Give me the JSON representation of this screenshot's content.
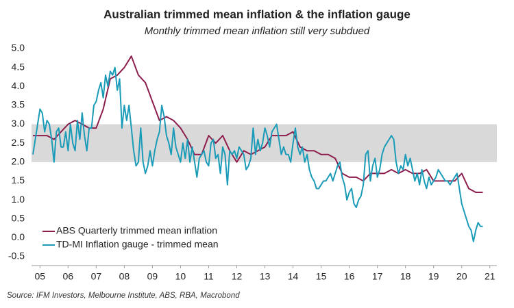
{
  "chart_data": {
    "type": "line",
    "title": "Australian trimmed mean inflation & the inflation gauge",
    "subtitle": "Monthly trimmed mean inflation still very subdued",
    "source": "Source: IFM Investors, Melbourne Institute, ABS, RBA, Macrobond",
    "xlim": [
      2004.7,
      2021.25
    ],
    "xticks": [
      {
        "value": 2005,
        "label": "05"
      },
      {
        "value": 2006,
        "label": "06"
      },
      {
        "value": 2007,
        "label": "07"
      },
      {
        "value": 2008,
        "label": "08"
      },
      {
        "value": 2009,
        "label": "09"
      },
      {
        "value": 2010,
        "label": "10"
      },
      {
        "value": 2011,
        "label": "11"
      },
      {
        "value": 2012,
        "label": "12"
      },
      {
        "value": 2013,
        "label": "13"
      },
      {
        "value": 2014,
        "label": "14"
      },
      {
        "value": 2015,
        "label": "15"
      },
      {
        "value": 2016,
        "label": "16"
      },
      {
        "value": 2017,
        "label": "17"
      },
      {
        "value": 2018,
        "label": "18"
      },
      {
        "value": 2019,
        "label": "19"
      },
      {
        "value": 2020,
        "label": "20"
      },
      {
        "value": 2021,
        "label": "21"
      }
    ],
    "ylim": [
      -0.7,
      5.1
    ],
    "yticks": [
      -0.5,
      {
        "value": 0,
        "label": "0.0"
      },
      0.5,
      {
        "value": 1,
        "label": "1.0"
      },
      1.5,
      {
        "value": 2,
        "label": "2.0"
      },
      2.5,
      {
        "value": 3,
        "label": "3.0"
      },
      3.5,
      {
        "value": 4,
        "label": "4.0"
      },
      4.5,
      {
        "value": 5,
        "label": "5.0"
      }
    ],
    "grid": false,
    "band": [
      2,
      3
    ],
    "band_color": "#d9d9d9",
    "legend": "lower left",
    "series": [
      {
        "name": "ABS Quarterly trimmed mean inflation",
        "color": "#8c1d4d",
        "x": [
          2004.75,
          2005,
          2005.25,
          2005.5,
          2005.75,
          2006,
          2006.25,
          2006.5,
          2006.75,
          2007,
          2007.25,
          2007.5,
          2007.75,
          2008,
          2008.25,
          2008.5,
          2008.75,
          2009,
          2009.25,
          2009.5,
          2009.75,
          2010,
          2010.25,
          2010.5,
          2010.75,
          2011,
          2011.25,
          2011.5,
          2011.75,
          2012,
          2012.25,
          2012.5,
          2012.75,
          2013,
          2013.25,
          2013.5,
          2013.75,
          2014,
          2014.25,
          2014.5,
          2014.75,
          2015,
          2015.25,
          2015.5,
          2015.75,
          2016,
          2016.25,
          2016.5,
          2016.75,
          2017,
          2017.25,
          2017.5,
          2017.75,
          2018,
          2018.25,
          2018.5,
          2018.75,
          2019,
          2019.25,
          2019.5,
          2019.75,
          2020,
          2020.25,
          2020.5,
          2020.75
        ],
        "values": [
          2.7,
          2.7,
          2.7,
          2.6,
          2.8,
          3.0,
          3.1,
          3.0,
          2.9,
          2.9,
          3.4,
          4.2,
          4.3,
          4.5,
          4.8,
          4.3,
          4.1,
          3.6,
          3.1,
          3.2,
          3.1,
          2.9,
          2.6,
          2.2,
          2.2,
          2.7,
          2.5,
          2.7,
          2.3,
          2.0,
          2.3,
          2.2,
          2.3,
          2.4,
          2.7,
          2.7,
          2.7,
          2.8,
          2.4,
          2.3,
          2.3,
          2.2,
          2.2,
          2.1,
          1.7,
          1.6,
          1.6,
          1.5,
          1.7,
          1.7,
          1.7,
          1.8,
          1.7,
          1.8,
          1.7,
          1.7,
          1.8,
          1.5,
          1.5,
          1.5,
          1.5,
          1.7,
          1.3,
          1.2,
          1.2
        ]
      },
      {
        "name": "TD-MI Inflation gauge - trimmed mean",
        "color": "#1a9bb8",
        "x": [
          2004.75,
          2004.833,
          2004.917,
          2005,
          2005.083,
          2005.167,
          2005.25,
          2005.333,
          2005.417,
          2005.5,
          2005.583,
          2005.667,
          2005.75,
          2005.833,
          2005.917,
          2006,
          2006.083,
          2006.167,
          2006.25,
          2006.333,
          2006.417,
          2006.5,
          2006.583,
          2006.667,
          2006.75,
          2006.833,
          2006.917,
          2007,
          2007.083,
          2007.167,
          2007.25,
          2007.333,
          2007.417,
          2007.5,
          2007.583,
          2007.667,
          2007.75,
          2007.833,
          2007.917,
          2008,
          2008.083,
          2008.167,
          2008.25,
          2008.333,
          2008.417,
          2008.5,
          2008.583,
          2008.667,
          2008.75,
          2008.833,
          2008.917,
          2009,
          2009.083,
          2009.167,
          2009.25,
          2009.333,
          2009.417,
          2009.5,
          2009.583,
          2009.667,
          2009.75,
          2009.833,
          2009.917,
          2010,
          2010.083,
          2010.167,
          2010.25,
          2010.333,
          2010.417,
          2010.5,
          2010.583,
          2010.667,
          2010.75,
          2010.833,
          2010.917,
          2011,
          2011.083,
          2011.167,
          2011.25,
          2011.333,
          2011.417,
          2011.5,
          2011.583,
          2011.667,
          2011.75,
          2011.833,
          2011.917,
          2012,
          2012.083,
          2012.167,
          2012.25,
          2012.333,
          2012.417,
          2012.5,
          2012.583,
          2012.667,
          2012.75,
          2012.833,
          2012.917,
          2013,
          2013.083,
          2013.167,
          2013.25,
          2013.333,
          2013.417,
          2013.5,
          2013.583,
          2013.667,
          2013.75,
          2013.833,
          2013.917,
          2014,
          2014.083,
          2014.167,
          2014.25,
          2014.333,
          2014.417,
          2014.5,
          2014.583,
          2014.667,
          2014.75,
          2014.833,
          2014.917,
          2015,
          2015.083,
          2015.167,
          2015.25,
          2015.333,
          2015.417,
          2015.5,
          2015.583,
          2015.667,
          2015.75,
          2015.833,
          2015.917,
          2016,
          2016.083,
          2016.167,
          2016.25,
          2016.333,
          2016.417,
          2016.5,
          2016.583,
          2016.667,
          2016.75,
          2016.833,
          2016.917,
          2017,
          2017.083,
          2017.167,
          2017.25,
          2017.333,
          2017.417,
          2017.5,
          2017.583,
          2017.667,
          2017.75,
          2017.833,
          2017.917,
          2018,
          2018.083,
          2018.167,
          2018.25,
          2018.333,
          2018.417,
          2018.5,
          2018.583,
          2018.667,
          2018.75,
          2018.833,
          2018.917,
          2019,
          2019.083,
          2019.167,
          2019.25,
          2019.333,
          2019.417,
          2019.5,
          2019.583,
          2019.667,
          2019.75,
          2019.833,
          2019.917,
          2020,
          2020.083,
          2020.167,
          2020.25,
          2020.333,
          2020.417,
          2020.5,
          2020.583,
          2020.667,
          2020.75
        ],
        "values": [
          2.2,
          2.6,
          3.0,
          3.4,
          3.3,
          2.8,
          3.1,
          3.0,
          2.6,
          2.0,
          2.8,
          2.9,
          2.4,
          2.4,
          2.8,
          2.3,
          3.0,
          2.5,
          2.3,
          3.1,
          2.6,
          3.3,
          2.7,
          2.3,
          2.9,
          2.9,
          3.5,
          3.6,
          3.9,
          4.1,
          3.7,
          4.3,
          4.0,
          4.4,
          4.3,
          4.5,
          3.9,
          4.2,
          2.9,
          3.5,
          3.1,
          3.5,
          2.9,
          2.3,
          1.9,
          2.0,
          2.9,
          2.0,
          1.7,
          1.9,
          2.3,
          1.9,
          2.3,
          2.6,
          2.8,
          3.5,
          3.2,
          2.7,
          2.5,
          2.2,
          2.9,
          2.4,
          2.2,
          2.0,
          2.5,
          2.1,
          2.6,
          2.0,
          2.4,
          2.0,
          1.6,
          2.1,
          2.2,
          2.3,
          2.0,
          1.9,
          2.5,
          2.6,
          2.1,
          2.2,
          1.7,
          2.4,
          2.2,
          1.4,
          2.3,
          2.2,
          2.3,
          2.1,
          2.4,
          2.3,
          2.2,
          1.8,
          1.9,
          2.1,
          2.9,
          2.2,
          2.6,
          2.3,
          2.5,
          2.9,
          2.7,
          2.4,
          2.8,
          2.9,
          3.0,
          2.6,
          2.2,
          2.4,
          2.2,
          2.2,
          2.0,
          2.5,
          2.9,
          2.4,
          2.2,
          2.4,
          2.0,
          2.2,
          1.8,
          1.6,
          1.5,
          1.3,
          1.3,
          1.4,
          1.5,
          1.5,
          1.6,
          1.7,
          1.5,
          1.7,
          1.9,
          2.0,
          1.6,
          1.4,
          1.0,
          1.2,
          1.3,
          0.9,
          0.8,
          1.0,
          1.1,
          1.4,
          2.2,
          2.3,
          1.5,
          1.9,
          2.1,
          1.6,
          1.8,
          2.2,
          2.4,
          2.5,
          2.6,
          2.7,
          2.6,
          2.0,
          1.7,
          1.9,
          1.8,
          2.2,
          1.9,
          2.1,
          1.8,
          1.5,
          1.7,
          1.4,
          1.8,
          1.5,
          1.3,
          1.6,
          1.4,
          1.5,
          1.6,
          1.8,
          1.7,
          1.6,
          1.5,
          1.5,
          1.4,
          1.5,
          1.6,
          1.7,
          1.3,
          0.9,
          0.7,
          0.5,
          0.3,
          0.2,
          -0.1,
          0.2,
          0.4,
          0.3,
          0.3
        ]
      }
    ]
  }
}
